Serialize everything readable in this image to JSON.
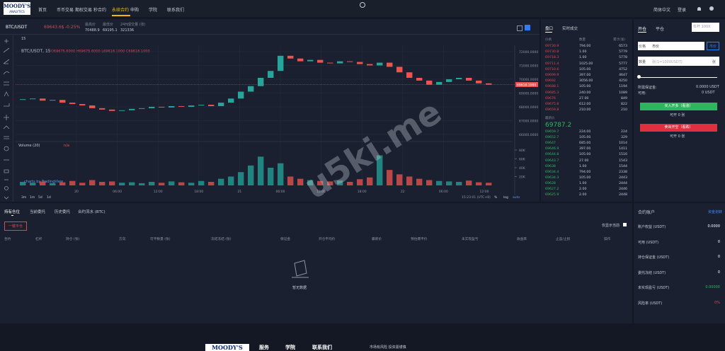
{
  "nav": {
    "logo_top": "MOODY'S",
    "logo_bottom": "ANALYTICS",
    "items": [
      {
        "label": "首页"
      },
      {
        "label": "币币交易"
      },
      {
        "label": "期权交易"
      },
      {
        "label": "秒合约"
      },
      {
        "label": "永续合约",
        "active": true
      },
      {
        "label": "申购"
      },
      {
        "label": "学院"
      },
      {
        "label": "联系我们"
      }
    ],
    "lang": "简体中文",
    "login": "登录"
  },
  "ticker": {
    "pair": "BTC/USDT",
    "price": "69643.6$",
    "change": "-0.25%",
    "high_label": "最高价",
    "high": 70488.9,
    "low_label": "最低价",
    "low": 69195.1,
    "volume_label": "24H成交量 (张)",
    "volume": 321336
  },
  "chart": {
    "interval": "15",
    "symbol": "BTC/USDT, 15",
    "ohlc": "O69675.6000 H69675.6000 L69618.1000 C69618.1000",
    "ylim": [
      65740,
      72460
    ],
    "price_ticks": [
      {
        "value": 72000,
        "label": "72000.0000"
      },
      {
        "value": 71000,
        "label": "71000.0000"
      },
      {
        "value": 70000,
        "label": "70000.0000"
      },
      {
        "value": 69000,
        "label": "69000.0000"
      },
      {
        "value": 68000,
        "label": "68000.0000"
      },
      {
        "value": 67000,
        "label": "67000.0000"
      },
      {
        "value": 66000,
        "label": "66000.0000"
      }
    ],
    "last_price": {
      "value": 69618.1,
      "label": "69618.1000"
    },
    "first_open": 68500,
    "closes": [
      68550,
      68600,
      68450,
      68500,
      68300,
      68200,
      68100,
      67900,
      67800,
      67700,
      67750,
      67850,
      67900,
      68000,
      67950,
      68050,
      68000,
      68100,
      68150,
      68050,
      68300,
      68600,
      69100,
      69500,
      70100,
      70600,
      71700,
      71500,
      71300,
      71400,
      71200,
      71150,
      71300,
      71250,
      71100,
      71000,
      71200,
      70900,
      70500,
      70100,
      69900,
      69600,
      69800,
      70000,
      70100,
      69900,
      69700,
      69600
    ],
    "vlim": [
      0,
      96000
    ],
    "volumes": [
      8000,
      6000,
      9000,
      5000,
      7000,
      10000,
      6000,
      12000,
      8000,
      9000,
      6000,
      7000,
      5000,
      8000,
      6000,
      9000,
      7000,
      6000,
      10000,
      8000,
      15000,
      20000,
      30000,
      45000,
      65000,
      40000,
      50000,
      20000,
      15000,
      12000,
      10000,
      9000,
      11000,
      8000,
      14000,
      18000,
      68000,
      35000,
      25000,
      20000,
      15000,
      12000,
      10000,
      9000,
      8000,
      11000,
      7000,
      6000
    ],
    "volume_ticks": [
      {
        "value": 80000,
        "label": "80K"
      },
      {
        "value": 60000,
        "label": "60K"
      },
      {
        "value": 40000,
        "label": "40K"
      },
      {
        "value": 20000,
        "label": "20K"
      }
    ],
    "volume_label": "Volume (20)",
    "volume_na": "n/a",
    "credit": "charts by TradingView",
    "time_labels": [
      "20",
      "06:00",
      "12:00",
      "18:00",
      "21",
      "06:00",
      "12:00",
      "18:00",
      "22",
      "06:00",
      "12:00"
    ],
    "ranges": [
      "3m",
      "1m",
      "5d",
      "1d"
    ],
    "clock": "15:23:01 (UTC+8)",
    "scale_opts": [
      "%",
      "log",
      "auto"
    ]
  },
  "orderbook": {
    "tabs": [
      "盘口",
      "实时成交"
    ],
    "headers": [
      "价格",
      "数量",
      "累计(张)"
    ],
    "asks": [
      [
        "69730.9",
        "794.00",
        "6573"
      ],
      [
        "69730.8",
        "1.00",
        "5779"
      ],
      [
        "69718.3",
        "1.00",
        "5778"
      ],
      [
        "69711.4",
        "1025.00",
        "5777"
      ],
      [
        "69710.6",
        "105.00",
        "4752"
      ],
      [
        "69699.9",
        "397.00",
        "4647"
      ],
      [
        "69692",
        "3056.00",
        "4250"
      ],
      [
        "69688.1",
        "105.00",
        "1194"
      ],
      [
        "69685.3",
        "240.00",
        "1089"
      ],
      [
        "69676",
        "27.00",
        "849"
      ],
      [
        "69675.8",
        "612.00",
        "822"
      ],
      [
        "69659.8",
        "210.00",
        "210"
      ]
    ],
    "last_label": "最新价",
    "last": "69787.2",
    "bids": [
      [
        "69659.7",
        "224.00",
        "224"
      ],
      [
        "69652.7",
        "105.00",
        "329"
      ],
      [
        "69647",
        "685.00",
        "1014"
      ],
      [
        "69646.9",
        "397.00",
        "1411"
      ],
      [
        "69644.8",
        "105.00",
        "1516"
      ],
      [
        "69643.7",
        "27.00",
        "1543"
      ],
      [
        "69638",
        "1.00",
        "1544"
      ],
      [
        "69634.4",
        "794.00",
        "2338"
      ],
      [
        "69634.3",
        "105.00",
        "2443"
      ],
      [
        "69628",
        "1.00",
        "2444"
      ],
      [
        "69627.2",
        "2.00",
        "2446"
      ],
      [
        "69625.9",
        "2.00",
        "2448"
      ]
    ]
  },
  "order_form": {
    "tabs": [
      "开仓",
      "平仓"
    ],
    "leverage": "杠杆 100X",
    "price_label": "价格",
    "price_value": "市价",
    "price_btn": "市价",
    "qty_label": "数量",
    "qty_placeholder": "张(1=1000USDT)",
    "qty_unit": "张",
    "margin_label": "所需保证金:",
    "margin_value": "0.0000 USDT",
    "avail_label": "可用:",
    "avail_value": "0 USDT",
    "buy": "买入开多（看涨）",
    "buy_note": "可开 0 张",
    "sell": "卖出开空（看跌）",
    "sell_note": "可开 0 张"
  },
  "positions": {
    "tabs": [
      "持有仓位",
      "当前委托",
      "历史委托",
      "合约流水 (BTC)"
    ],
    "close_all": "一键平仓",
    "only_current": "仅显示当前",
    "columns": [
      "合约",
      "杠杆",
      "持仓 (张)",
      "方向",
      "可平数量 (张)",
      "冻结冻结 (张)",
      "保证金",
      "开仓平均价",
      "最新价",
      "预估爆平价",
      "未实现盈亏",
      "收益率",
      "止盈/止损",
      "操作"
    ],
    "empty": "暂无数据"
  },
  "account": {
    "title": "合约账户",
    "transfer": "资金划转",
    "rows": [
      [
        "账户权益 (USDT)",
        "0.0000"
      ],
      [
        "可用 (USDT)",
        "0"
      ],
      [
        "持仓保证金 (USDT)",
        "0"
      ],
      [
        "委托冻结 (USDT)",
        "0"
      ],
      [
        "未实现盈亏 (USDT)",
        "0.00000"
      ],
      [
        "风险率 (USDT)",
        "0%"
      ]
    ]
  },
  "footer": {
    "logo": "MOODY'S",
    "links": [
      "服务",
      "学院",
      "联系我们"
    ],
    "notice": "市场有风险 投资需谨慎"
  },
  "watermark": "u5ki.me"
}
